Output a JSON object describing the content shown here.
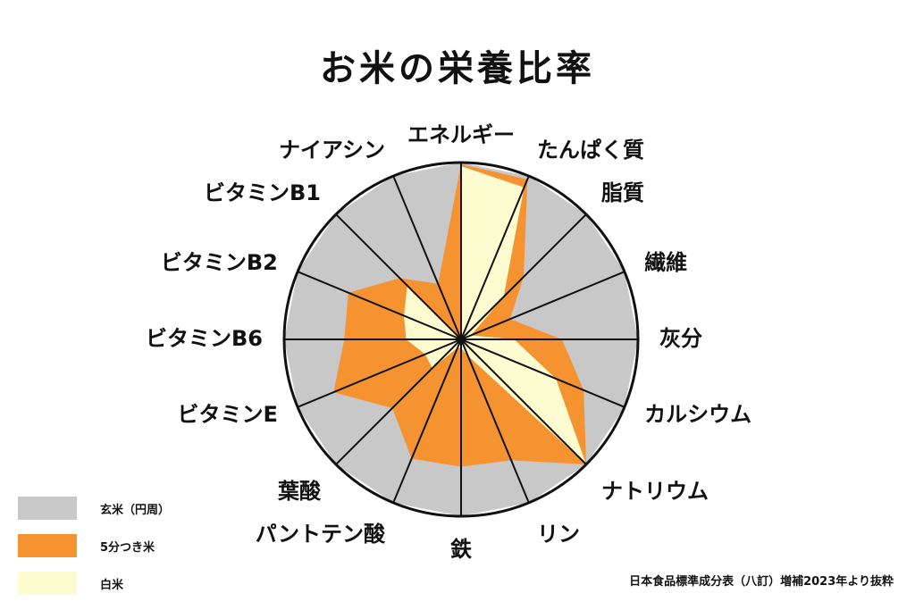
{
  "title": "お米の栄養比率",
  "colors": {
    "genmai": "#c8c8c8",
    "gobuzuki": "#f59331",
    "hakumai": "#fdfbd0",
    "line": "#111111"
  },
  "chart_data": {
    "type": "radar",
    "title": "お米の栄養比率",
    "axes": [
      "エネルギー",
      "たんぱく質",
      "脂質",
      "繊維",
      "灰分",
      "カルシウム",
      "ナトリウム",
      "リン",
      "鉄",
      "パントテン酸",
      "葉酸",
      "ビタミンE",
      "ビタミンB6",
      "ビタミンB2",
      "ビタミンB1",
      "ナイアシン"
    ],
    "range": [
      0,
      100
    ],
    "grid": false,
    "legend_position": "bottom-left",
    "series": [
      {
        "name": "玄米（円周）",
        "values": [
          100,
          100,
          100,
          100,
          100,
          100,
          100,
          100,
          100,
          100,
          100,
          100,
          100,
          100,
          100,
          100
        ]
      },
      {
        "name": "5分つき米",
        "values": [
          99,
          98,
          50,
          30,
          57,
          75,
          100,
          74,
          72,
          73,
          55,
          78,
          66,
          69,
          49,
          34
        ]
      },
      {
        "name": "白米",
        "values": [
          98,
          93,
          34,
          6,
          30,
          58,
          100,
          10,
          5,
          5,
          23,
          22,
          31,
          35,
          43,
          0
        ]
      }
    ]
  },
  "legend": [
    {
      "label": "玄米（円周）",
      "color": "#c8c8c8"
    },
    {
      "label": "5分つき米",
      "color": "#f59331"
    },
    {
      "label": "白米",
      "color": "#fdfbd0"
    }
  ],
  "source": "日本食品標準成分表（八訂）増補2023年より抜粋"
}
